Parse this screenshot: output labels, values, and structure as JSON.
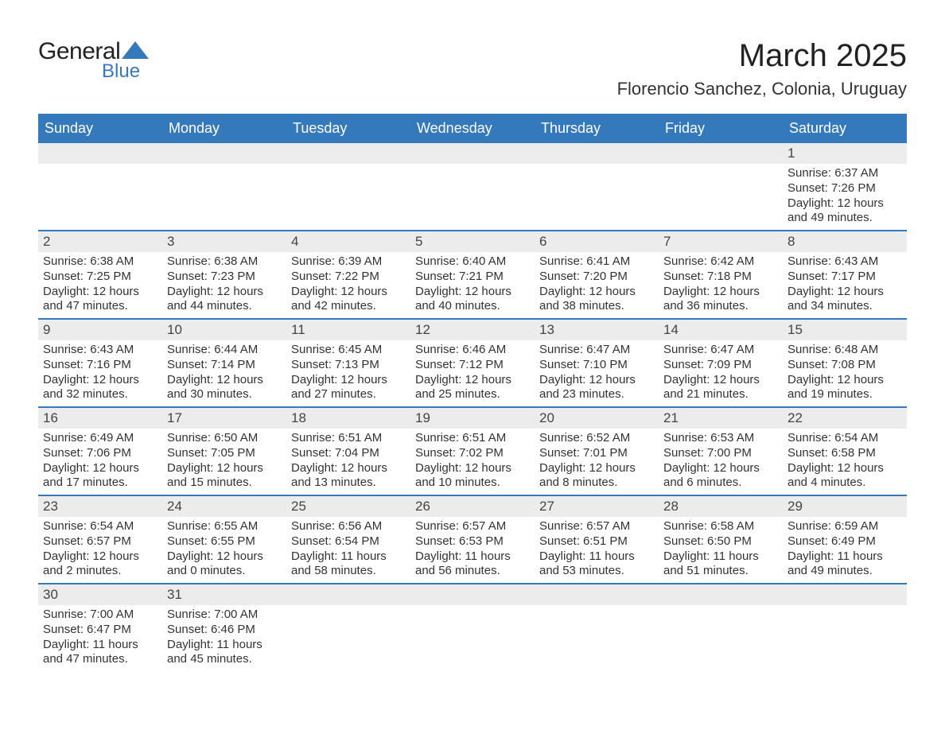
{
  "logo": {
    "general": "General",
    "blue": "Blue",
    "triangle_color": "#3579bd"
  },
  "title": "March 2025",
  "location": "Florencio Sanchez, Colonia, Uruguay",
  "colors": {
    "header_bg": "#3579bd",
    "header_text": "#ffffff",
    "daynum_bg": "#ececec",
    "row_border": "#3579bd",
    "text": "#333333"
  },
  "fonts": {
    "title_size": 40,
    "location_size": 22,
    "dayheader_size": 18,
    "daynum_size": 17,
    "detail_size": 15
  },
  "weekdays": [
    "Sunday",
    "Monday",
    "Tuesday",
    "Wednesday",
    "Thursday",
    "Friday",
    "Saturday"
  ],
  "weeks": [
    [
      null,
      null,
      null,
      null,
      null,
      null,
      {
        "day": "1",
        "sunrise": "Sunrise: 6:37 AM",
        "sunset": "Sunset: 7:26 PM",
        "daylight": "Daylight: 12 hours and 49 minutes."
      }
    ],
    [
      {
        "day": "2",
        "sunrise": "Sunrise: 6:38 AM",
        "sunset": "Sunset: 7:25 PM",
        "daylight": "Daylight: 12 hours and 47 minutes."
      },
      {
        "day": "3",
        "sunrise": "Sunrise: 6:38 AM",
        "sunset": "Sunset: 7:23 PM",
        "daylight": "Daylight: 12 hours and 44 minutes."
      },
      {
        "day": "4",
        "sunrise": "Sunrise: 6:39 AM",
        "sunset": "Sunset: 7:22 PM",
        "daylight": "Daylight: 12 hours and 42 minutes."
      },
      {
        "day": "5",
        "sunrise": "Sunrise: 6:40 AM",
        "sunset": "Sunset: 7:21 PM",
        "daylight": "Daylight: 12 hours and 40 minutes."
      },
      {
        "day": "6",
        "sunrise": "Sunrise: 6:41 AM",
        "sunset": "Sunset: 7:20 PM",
        "daylight": "Daylight: 12 hours and 38 minutes."
      },
      {
        "day": "7",
        "sunrise": "Sunrise: 6:42 AM",
        "sunset": "Sunset: 7:18 PM",
        "daylight": "Daylight: 12 hours and 36 minutes."
      },
      {
        "day": "8",
        "sunrise": "Sunrise: 6:43 AM",
        "sunset": "Sunset: 7:17 PM",
        "daylight": "Daylight: 12 hours and 34 minutes."
      }
    ],
    [
      {
        "day": "9",
        "sunrise": "Sunrise: 6:43 AM",
        "sunset": "Sunset: 7:16 PM",
        "daylight": "Daylight: 12 hours and 32 minutes."
      },
      {
        "day": "10",
        "sunrise": "Sunrise: 6:44 AM",
        "sunset": "Sunset: 7:14 PM",
        "daylight": "Daylight: 12 hours and 30 minutes."
      },
      {
        "day": "11",
        "sunrise": "Sunrise: 6:45 AM",
        "sunset": "Sunset: 7:13 PM",
        "daylight": "Daylight: 12 hours and 27 minutes."
      },
      {
        "day": "12",
        "sunrise": "Sunrise: 6:46 AM",
        "sunset": "Sunset: 7:12 PM",
        "daylight": "Daylight: 12 hours and 25 minutes."
      },
      {
        "day": "13",
        "sunrise": "Sunrise: 6:47 AM",
        "sunset": "Sunset: 7:10 PM",
        "daylight": "Daylight: 12 hours and 23 minutes."
      },
      {
        "day": "14",
        "sunrise": "Sunrise: 6:47 AM",
        "sunset": "Sunset: 7:09 PM",
        "daylight": "Daylight: 12 hours and 21 minutes."
      },
      {
        "day": "15",
        "sunrise": "Sunrise: 6:48 AM",
        "sunset": "Sunset: 7:08 PM",
        "daylight": "Daylight: 12 hours and 19 minutes."
      }
    ],
    [
      {
        "day": "16",
        "sunrise": "Sunrise: 6:49 AM",
        "sunset": "Sunset: 7:06 PM",
        "daylight": "Daylight: 12 hours and 17 minutes."
      },
      {
        "day": "17",
        "sunrise": "Sunrise: 6:50 AM",
        "sunset": "Sunset: 7:05 PM",
        "daylight": "Daylight: 12 hours and 15 minutes."
      },
      {
        "day": "18",
        "sunrise": "Sunrise: 6:51 AM",
        "sunset": "Sunset: 7:04 PM",
        "daylight": "Daylight: 12 hours and 13 minutes."
      },
      {
        "day": "19",
        "sunrise": "Sunrise: 6:51 AM",
        "sunset": "Sunset: 7:02 PM",
        "daylight": "Daylight: 12 hours and 10 minutes."
      },
      {
        "day": "20",
        "sunrise": "Sunrise: 6:52 AM",
        "sunset": "Sunset: 7:01 PM",
        "daylight": "Daylight: 12 hours and 8 minutes."
      },
      {
        "day": "21",
        "sunrise": "Sunrise: 6:53 AM",
        "sunset": "Sunset: 7:00 PM",
        "daylight": "Daylight: 12 hours and 6 minutes."
      },
      {
        "day": "22",
        "sunrise": "Sunrise: 6:54 AM",
        "sunset": "Sunset: 6:58 PM",
        "daylight": "Daylight: 12 hours and 4 minutes."
      }
    ],
    [
      {
        "day": "23",
        "sunrise": "Sunrise: 6:54 AM",
        "sunset": "Sunset: 6:57 PM",
        "daylight": "Daylight: 12 hours and 2 minutes."
      },
      {
        "day": "24",
        "sunrise": "Sunrise: 6:55 AM",
        "sunset": "Sunset: 6:55 PM",
        "daylight": "Daylight: 12 hours and 0 minutes."
      },
      {
        "day": "25",
        "sunrise": "Sunrise: 6:56 AM",
        "sunset": "Sunset: 6:54 PM",
        "daylight": "Daylight: 11 hours and 58 minutes."
      },
      {
        "day": "26",
        "sunrise": "Sunrise: 6:57 AM",
        "sunset": "Sunset: 6:53 PM",
        "daylight": "Daylight: 11 hours and 56 minutes."
      },
      {
        "day": "27",
        "sunrise": "Sunrise: 6:57 AM",
        "sunset": "Sunset: 6:51 PM",
        "daylight": "Daylight: 11 hours and 53 minutes."
      },
      {
        "day": "28",
        "sunrise": "Sunrise: 6:58 AM",
        "sunset": "Sunset: 6:50 PM",
        "daylight": "Daylight: 11 hours and 51 minutes."
      },
      {
        "day": "29",
        "sunrise": "Sunrise: 6:59 AM",
        "sunset": "Sunset: 6:49 PM",
        "daylight": "Daylight: 11 hours and 49 minutes."
      }
    ],
    [
      {
        "day": "30",
        "sunrise": "Sunrise: 7:00 AM",
        "sunset": "Sunset: 6:47 PM",
        "daylight": "Daylight: 11 hours and 47 minutes."
      },
      {
        "day": "31",
        "sunrise": "Sunrise: 7:00 AM",
        "sunset": "Sunset: 6:46 PM",
        "daylight": "Daylight: 11 hours and 45 minutes."
      },
      null,
      null,
      null,
      null,
      null
    ]
  ]
}
